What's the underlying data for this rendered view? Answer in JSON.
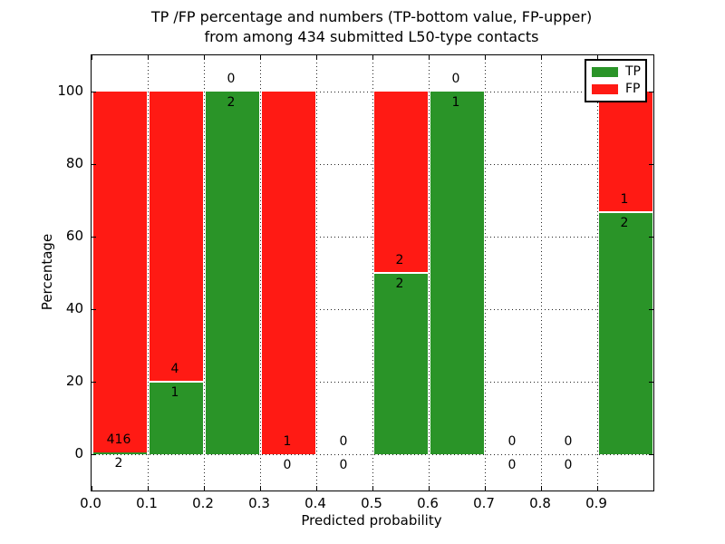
{
  "figure": {
    "title_line1": "TP /FP percentage and numbers (TP-bottom value, FP-upper)",
    "title_line2": "from among 434 submitted L50-type contacts"
  },
  "chart_data": {
    "type": "bar",
    "stacked": true,
    "title": "TP /FP percentage and numbers (TP-bottom value, FP-upper) from among 434 submitted L50-type contacts",
    "xlabel": "Predicted probability",
    "ylabel": "Percentage",
    "xlim": [
      0.0,
      1.0
    ],
    "ylim": [
      -10,
      110
    ],
    "xticks": [
      "0.0",
      "0.1",
      "0.2",
      "0.3",
      "0.4",
      "0.5",
      "0.6",
      "0.7",
      "0.8",
      "0.9"
    ],
    "yticks": [
      "0",
      "20",
      "40",
      "60",
      "80",
      "100"
    ],
    "grid": true,
    "grid_style": "dotted",
    "legend_position": "upper-right",
    "colors": {
      "tp": "#2a9428",
      "fp": "#ff1a14"
    },
    "legend": [
      {
        "label": "TP",
        "color": "#2a9428"
      },
      {
        "label": "FP",
        "color": "#ff1a14"
      }
    ],
    "bins": [
      {
        "range": [
          0.0,
          0.1
        ],
        "tp": 2,
        "fp": 416
      },
      {
        "range": [
          0.1,
          0.2
        ],
        "tp": 1,
        "fp": 4
      },
      {
        "range": [
          0.2,
          0.3
        ],
        "tp": 2,
        "fp": 0
      },
      {
        "range": [
          0.3,
          0.4
        ],
        "tp": 0,
        "fp": 1
      },
      {
        "range": [
          0.4,
          0.5
        ],
        "tp": 0,
        "fp": 0
      },
      {
        "range": [
          0.5,
          0.6
        ],
        "tp": 2,
        "fp": 2
      },
      {
        "range": [
          0.6,
          0.7
        ],
        "tp": 1,
        "fp": 0
      },
      {
        "range": [
          0.7,
          0.8
        ],
        "tp": 0,
        "fp": 0
      },
      {
        "range": [
          0.8,
          0.9
        ],
        "tp": 0,
        "fp": 0
      },
      {
        "range": [
          0.9,
          1.0
        ],
        "tp": 2,
        "fp": 1
      }
    ]
  }
}
